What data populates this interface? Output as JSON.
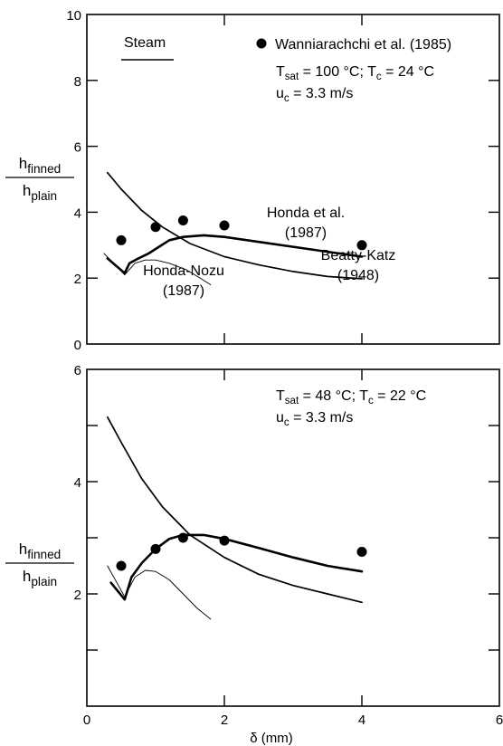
{
  "chart_data": [
    {
      "type": "line",
      "panel": "top",
      "xlabel": "",
      "ylabel": "h_finned / h_plain",
      "ylabel_num": "h",
      "ylabel_num_sub": "finned",
      "ylabel_den": "h",
      "ylabel_den_sub": "plain",
      "xlim": [
        0,
        6
      ],
      "ylim": [
        0,
        10
      ],
      "xticks": [
        0,
        2,
        4,
        6
      ],
      "yticks": [
        0,
        2,
        4,
        6,
        8,
        10
      ],
      "yticklabels": [
        "0",
        "2",
        "4",
        "6",
        "8",
        "10"
      ],
      "fluid_label": "Steam",
      "legend": {
        "marker_label": "Wanniarachchi et al. (1985)",
        "placement": "top-right"
      },
      "conditions": {
        "line1": [
          {
            "t": "T",
            "s": "sat",
            "v": " = 100 °C; T"
          },
          {
            "t": "",
            "s": "c",
            "v": " = 24 °C"
          }
        ],
        "line2": [
          {
            "t": "u",
            "s": "c",
            "v": " = 3.3 m/s"
          }
        ]
      },
      "series": [
        {
          "name": "Beatty-Katz (1948)",
          "label_lines": [
            "Beatty-Katz",
            "(1948)"
          ],
          "style": "medium",
          "x": [
            0.3,
            0.5,
            0.8,
            1.1,
            1.5,
            2.0,
            2.5,
            3.0,
            3.5,
            4.0
          ],
          "y": [
            5.2,
            4.7,
            4.05,
            3.55,
            3.05,
            2.65,
            2.4,
            2.2,
            2.05,
            1.98
          ]
        },
        {
          "name": "Honda et al. (1987)",
          "label_lines": [
            "Honda et al.",
            "(1987)"
          ],
          "style": "thick",
          "x": [
            0.3,
            0.55,
            0.62,
            0.75,
            0.9,
            1.05,
            1.2,
            1.4,
            1.7,
            2.0,
            2.5,
            3.0,
            3.5,
            4.0
          ],
          "y": [
            2.6,
            2.15,
            2.45,
            2.6,
            2.75,
            2.95,
            3.15,
            3.25,
            3.3,
            3.25,
            3.1,
            2.95,
            2.8,
            2.65
          ]
        },
        {
          "name": "Honda-Nozu (1987)",
          "label_lines": [
            "Honda-Nozu",
            "(1987)"
          ],
          "style": "thin",
          "x": [
            0.25,
            0.55,
            0.7,
            0.85,
            1.0,
            1.2,
            1.45,
            1.65,
            1.8
          ],
          "y": [
            2.75,
            2.1,
            2.45,
            2.55,
            2.55,
            2.45,
            2.25,
            2.0,
            1.8
          ]
        }
      ],
      "points": {
        "name": "Wanniarachchi et al. (1985)",
        "x": [
          0.5,
          1.0,
          1.4,
          2.0,
          4.0
        ],
        "y": [
          3.15,
          3.55,
          3.75,
          3.6,
          3.0
        ]
      }
    },
    {
      "type": "line",
      "panel": "bottom",
      "xlabel": "δ (mm)",
      "ylabel": "h_finned / h_plain",
      "ylabel_num": "h",
      "ylabel_num_sub": "finned",
      "ylabel_den": "h",
      "ylabel_den_sub": "plain",
      "xlim": [
        0,
        6
      ],
      "ylim": [
        0,
        6
      ],
      "xticks": [
        0,
        2,
        4,
        6
      ],
      "xticklabels": [
        "0",
        "2",
        "4",
        "6"
      ],
      "yticks": [
        0,
        1,
        2,
        3,
        4,
        5,
        6
      ],
      "yticklabels": [
        "",
        "",
        "2",
        "",
        "4",
        "",
        "6"
      ],
      "conditions": {
        "line1": [
          {
            "t": "T",
            "s": "sat",
            "v": " = 48 °C; T"
          },
          {
            "t": "",
            "s": "c",
            "v": " = 22 °C"
          }
        ],
        "line2": [
          {
            "t": "u",
            "s": "c",
            "v": " = 3.3 m/s"
          }
        ]
      },
      "series": [
        {
          "style": "medium",
          "x": [
            0.3,
            0.5,
            0.8,
            1.1,
            1.5,
            2.0,
            2.5,
            3.0,
            3.5,
            4.0
          ],
          "y": [
            5.15,
            4.7,
            4.05,
            3.55,
            3.05,
            2.65,
            2.35,
            2.15,
            2.0,
            1.85
          ]
        },
        {
          "style": "thick",
          "x": [
            0.35,
            0.55,
            0.65,
            0.8,
            1.0,
            1.2,
            1.4,
            1.7,
            2.0,
            2.5,
            3.0,
            3.5,
            4.0
          ],
          "y": [
            2.2,
            1.9,
            2.3,
            2.55,
            2.8,
            2.98,
            3.05,
            3.05,
            2.98,
            2.82,
            2.65,
            2.5,
            2.4
          ]
        },
        {
          "style": "thin",
          "x": [
            0.3,
            0.55,
            0.7,
            0.85,
            1.0,
            1.2,
            1.4,
            1.6,
            1.8
          ],
          "y": [
            2.5,
            1.95,
            2.3,
            2.42,
            2.4,
            2.25,
            2.0,
            1.75,
            1.55
          ]
        }
      ],
      "points": {
        "x": [
          0.5,
          1.0,
          1.4,
          2.0,
          4.0
        ],
        "y": [
          2.5,
          2.8,
          3.0,
          2.95,
          2.75
        ]
      }
    }
  ]
}
